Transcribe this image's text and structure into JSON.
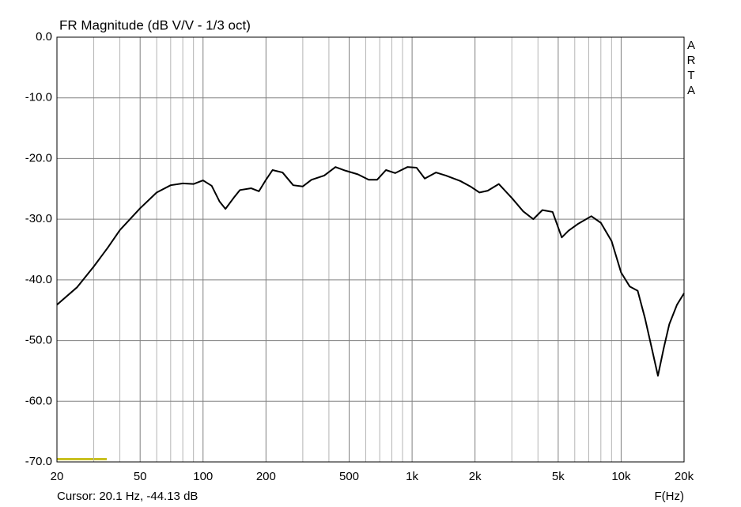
{
  "chart_data": {
    "type": "line",
    "title": "FR Magnitude (dB V/V - 1/3 oct)",
    "watermark": "ARTA",
    "cursor_text": "Cursor: 20.1 Hz, -44.13 dB",
    "xlabel": "F(Hz)",
    "xscale": "log",
    "grid": true,
    "color": "#000000",
    "x": [
      20,
      25,
      30,
      35,
      40,
      50,
      60,
      70,
      80,
      90,
      100,
      110,
      120,
      128,
      140,
      150,
      170,
      185,
      200,
      215,
      240,
      270,
      300,
      330,
      380,
      430,
      480,
      550,
      620,
      680,
      750,
      830,
      950,
      1050,
      1150,
      1300,
      1450,
      1700,
      1900,
      2100,
      2300,
      2600,
      3000,
      3400,
      3800,
      4200,
      4700,
      5200,
      5600,
      6200,
      7200,
      8000,
      9000,
      10000,
      11000,
      12000,
      13000,
      14000,
      15000,
      16000,
      17000,
      18500,
      20000
    ],
    "values": [
      -44.1,
      -41.2,
      -37.8,
      -34.7,
      -31.8,
      -28.2,
      -25.6,
      -24.4,
      -24.1,
      -24.2,
      -23.6,
      -24.5,
      -27.1,
      -28.3,
      -26.5,
      -25.2,
      -24.9,
      -25.4,
      -23.5,
      -21.9,
      -22.3,
      -24.4,
      -24.6,
      -23.5,
      -22.8,
      -21.4,
      -22.0,
      -22.6,
      -23.5,
      -23.5,
      -21.9,
      -22.4,
      -21.4,
      -21.5,
      -23.3,
      -22.3,
      -22.8,
      -23.7,
      -24.6,
      -25.6,
      -25.3,
      -24.2,
      -26.5,
      -28.7,
      -30.0,
      -28.5,
      -28.8,
      -33.0,
      -31.9,
      -30.8,
      -29.5,
      -30.6,
      -33.6,
      -38.8,
      -41.1,
      -41.8,
      -46.3,
      -51.2,
      -55.8,
      -51.2,
      -47.3,
      -44.1,
      -42.2
    ],
    "xlim": [
      20,
      20000
    ],
    "ylim": [
      -70,
      0
    ],
    "xticks": [
      20,
      50,
      100,
      200,
      500,
      {
        "value": 1000,
        "label": "1k"
      },
      {
        "value": 2000,
        "label": "2k"
      },
      {
        "value": 5000,
        "label": "5k"
      },
      {
        "value": 10000,
        "label": "10k"
      },
      {
        "value": 20000,
        "label": "20k"
      }
    ],
    "xgrid_minor": [
      30,
      40,
      60,
      70,
      80,
      90,
      300,
      400,
      600,
      700,
      800,
      900,
      3000,
      4000,
      6000,
      7000,
      8000,
      9000
    ],
    "yticks": [
      {
        "value": 0,
        "label": "0.0"
      },
      {
        "value": -10,
        "label": "-10.0"
      },
      {
        "value": -20,
        "label": "-20.0"
      },
      {
        "value": -30,
        "label": "-30.0"
      },
      {
        "value": -40,
        "label": "-40.0"
      },
      {
        "value": -50,
        "label": "-50.0"
      },
      {
        "value": -60,
        "label": "-60.0"
      },
      {
        "value": -70,
        "label": "-70.0"
      }
    ]
  }
}
